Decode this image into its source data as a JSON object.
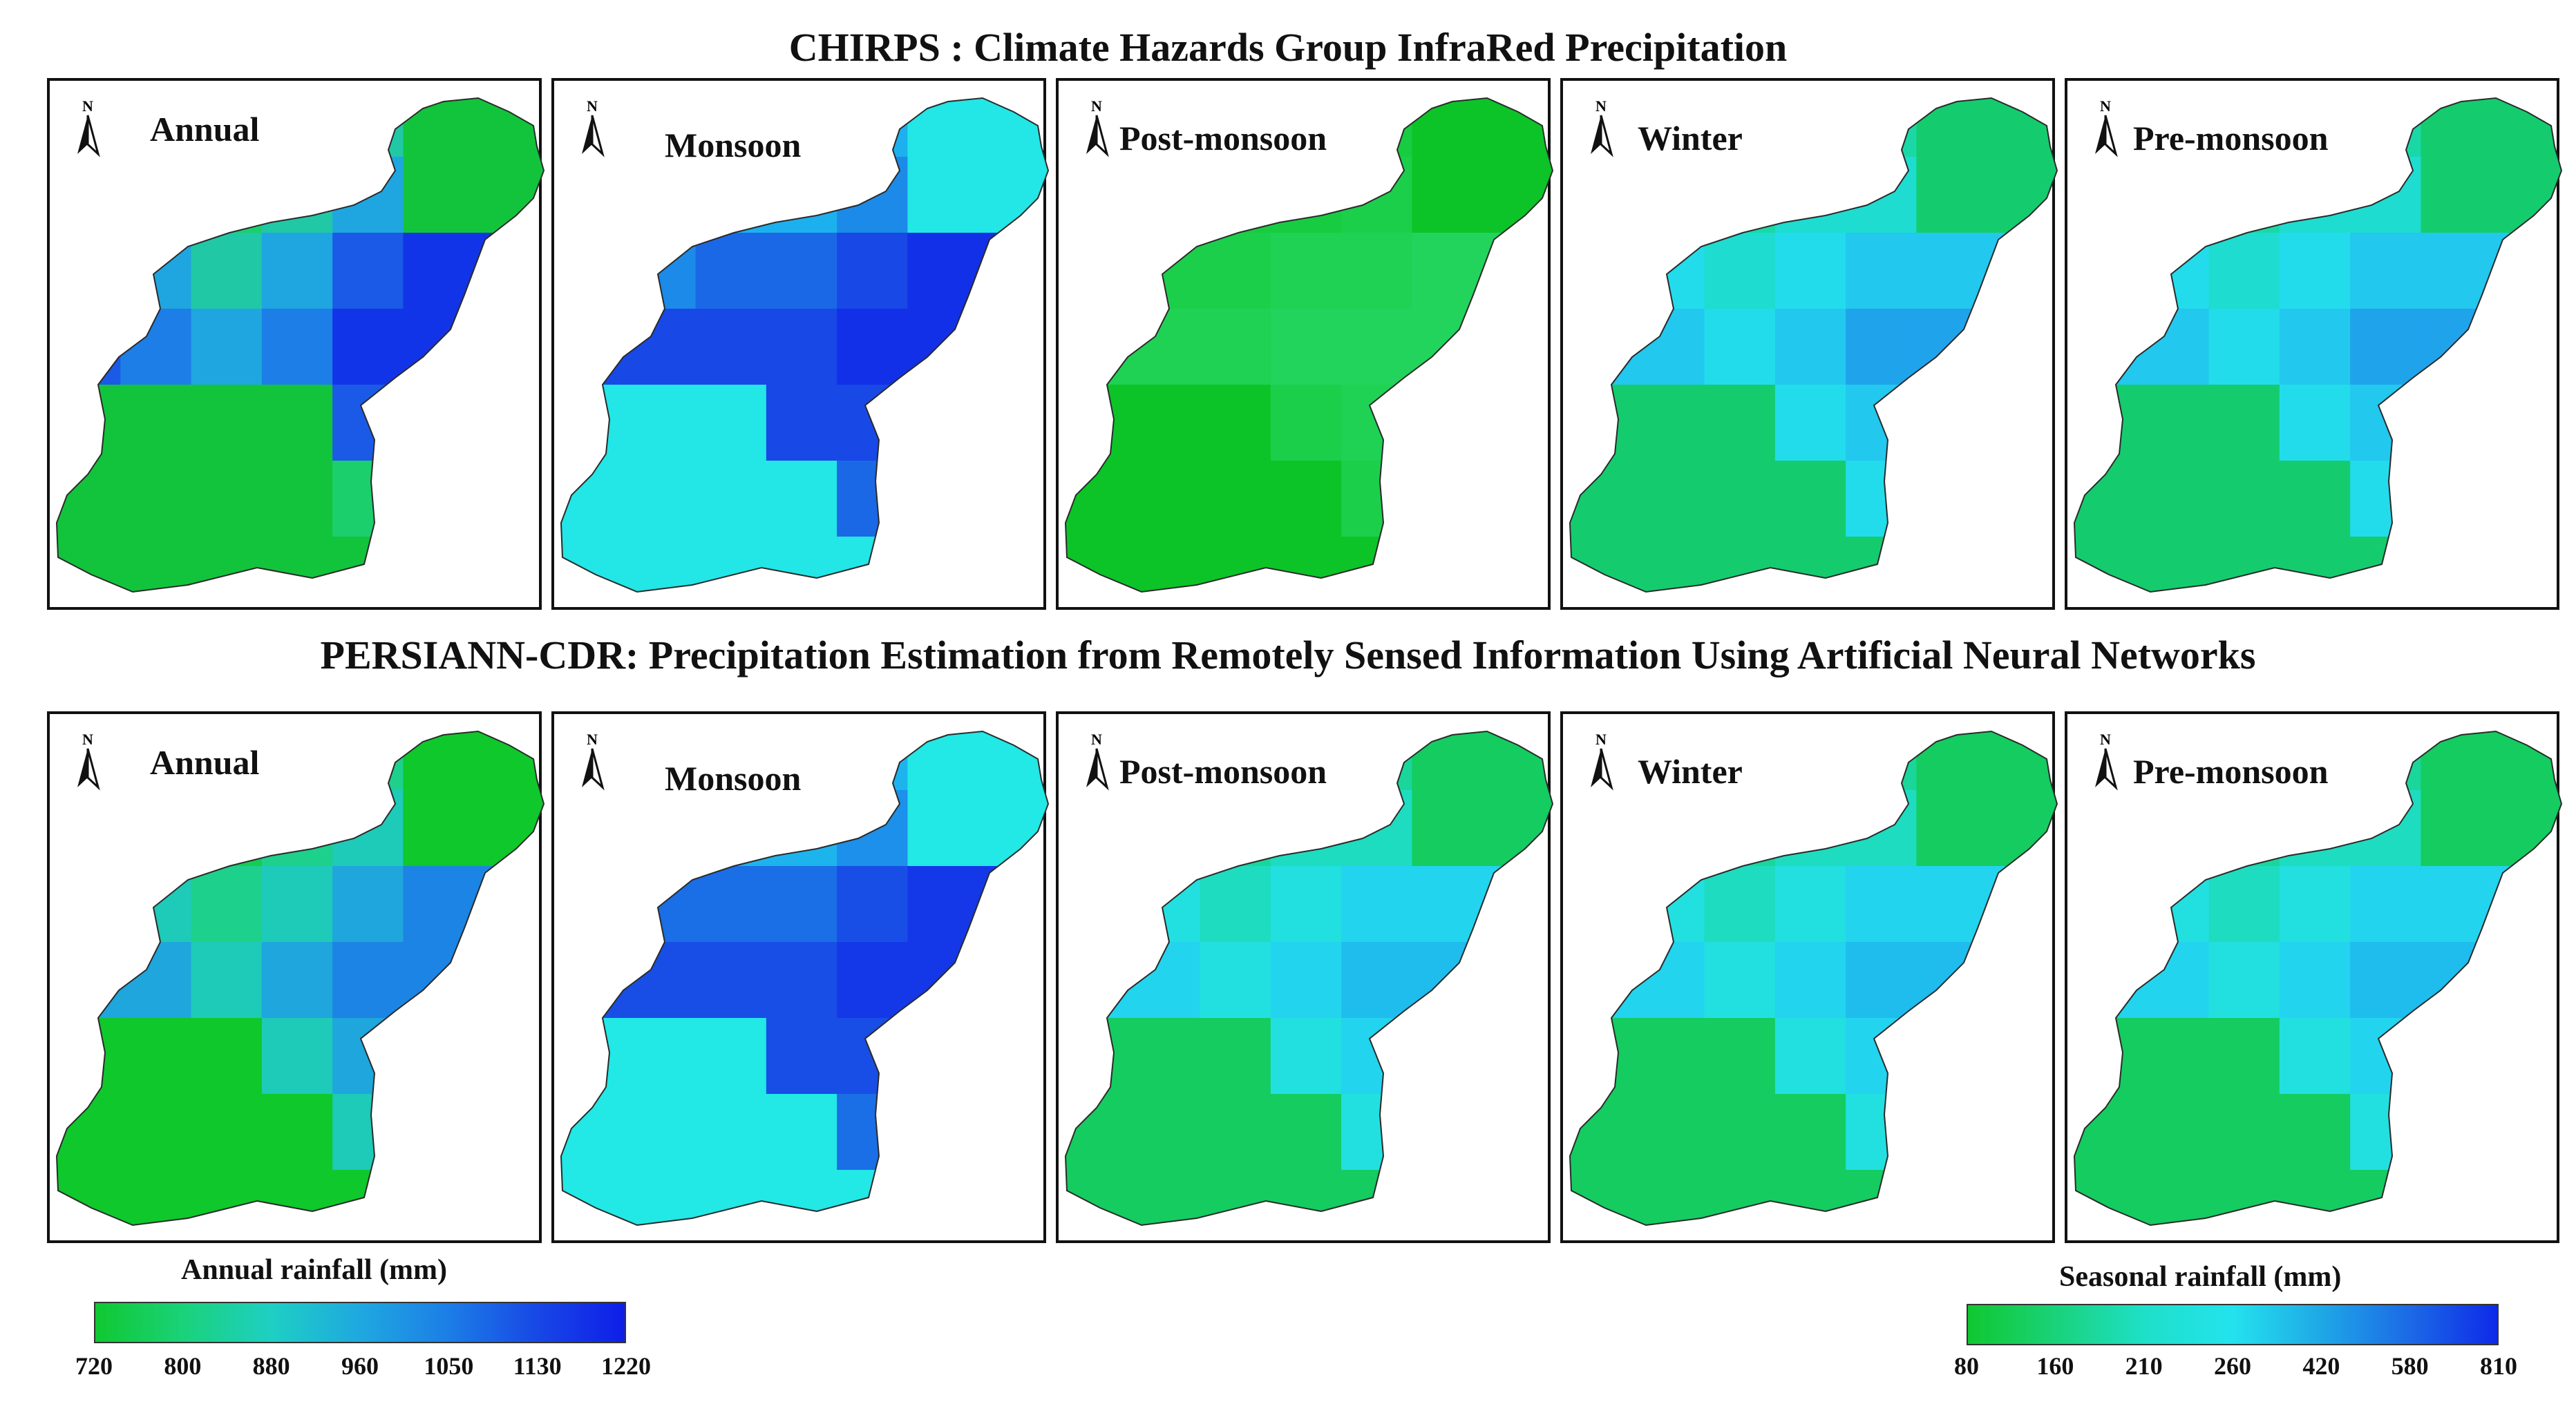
{
  "figure": {
    "top_title": "CHIRPS : Climate Hazards Group InfraRed Precipitation",
    "bottom_title": "PERSIANN-CDR: Precipitation Estimation from Remotely Sensed Information Using Artificial Neural Networks",
    "north_label": "N"
  },
  "rows": [
    {
      "dataset": "CHIRPS",
      "panels": [
        {
          "label": "Annual",
          "palette": [
            "#12c43c",
            "#1bd06c",
            "#20c8a6",
            "#1fa6e0",
            "#1c7ee6",
            "#1a5ae6",
            "#1234e8"
          ]
        },
        {
          "label": "Monsoon",
          "palette": [
            "#23e6e6",
            "#1ed0ee",
            "#1db0ee",
            "#1c8ae8",
            "#1b68e6",
            "#1848e6",
            "#1230e8"
          ]
        },
        {
          "label": "Post-monsoon",
          "palette": [
            "#0cc428",
            "#12c834",
            "#17cc40",
            "#1ccf4a",
            "#1fd254",
            "#22d45c",
            "#24d664"
          ]
        },
        {
          "label": "Winter",
          "palette": [
            "#14cc6e",
            "#17d488",
            "#1ad8a6",
            "#1edcd0",
            "#22dcec",
            "#22c8ee",
            "#1fa4ec"
          ]
        },
        {
          "label": "Pre-monsoon",
          "palette": [
            "#14cc6e",
            "#17d488",
            "#1ad8a6",
            "#1edcd0",
            "#22dcec",
            "#22c8ee",
            "#1fa4ec"
          ]
        }
      ]
    },
    {
      "dataset": "PERSIANN-CDR",
      "panels": [
        {
          "label": "Annual",
          "palette": [
            "#0ec82c",
            "#16cc52",
            "#1dd08c",
            "#1ecab8",
            "#1fa6dc",
            "#1c84e4",
            "#1860e6"
          ]
        },
        {
          "label": "Monsoon",
          "palette": [
            "#22e8e6",
            "#1ed6ee",
            "#1db4ee",
            "#1c90ea",
            "#1a6ee6",
            "#184ee6",
            "#1438e8"
          ]
        },
        {
          "label": "Post-monsoon",
          "palette": [
            "#14cc60",
            "#17d27c",
            "#1ad69a",
            "#1edcc0",
            "#22e0e0",
            "#22d4ee",
            "#1fbcee"
          ]
        },
        {
          "label": "Winter",
          "palette": [
            "#14cc60",
            "#17d27c",
            "#1ad69a",
            "#1edcc0",
            "#22e0e0",
            "#22d4ee",
            "#1fbcee"
          ]
        },
        {
          "label": "Pre-monsoon",
          "palette": [
            "#14cc60",
            "#17d27c",
            "#1ad69a",
            "#1edcc0",
            "#22e0e0",
            "#22d4ee",
            "#1fbcee"
          ]
        }
      ]
    }
  ],
  "legend_annual": {
    "title": "Annual rainfall (mm)",
    "ticks": [
      "720",
      "800",
      "880",
      "960",
      "1050",
      "1130",
      "1220"
    ],
    "gradient": [
      "#10c830",
      "#1ad27a",
      "#1ecfc4",
      "#1fa8e0",
      "#1c7ee6",
      "#1848e6",
      "#0e1ee8"
    ]
  },
  "legend_seasonal": {
    "title": "Seasonal rainfall (mm)",
    "ticks": [
      "80",
      "160",
      "210",
      "260",
      "420",
      "580",
      "810"
    ],
    "gradient": [
      "#10c830",
      "#1ad27a",
      "#1ee0c8",
      "#24e2ee",
      "#1fa8e6",
      "#1c6ae6",
      "#0e2ae8"
    ]
  }
}
